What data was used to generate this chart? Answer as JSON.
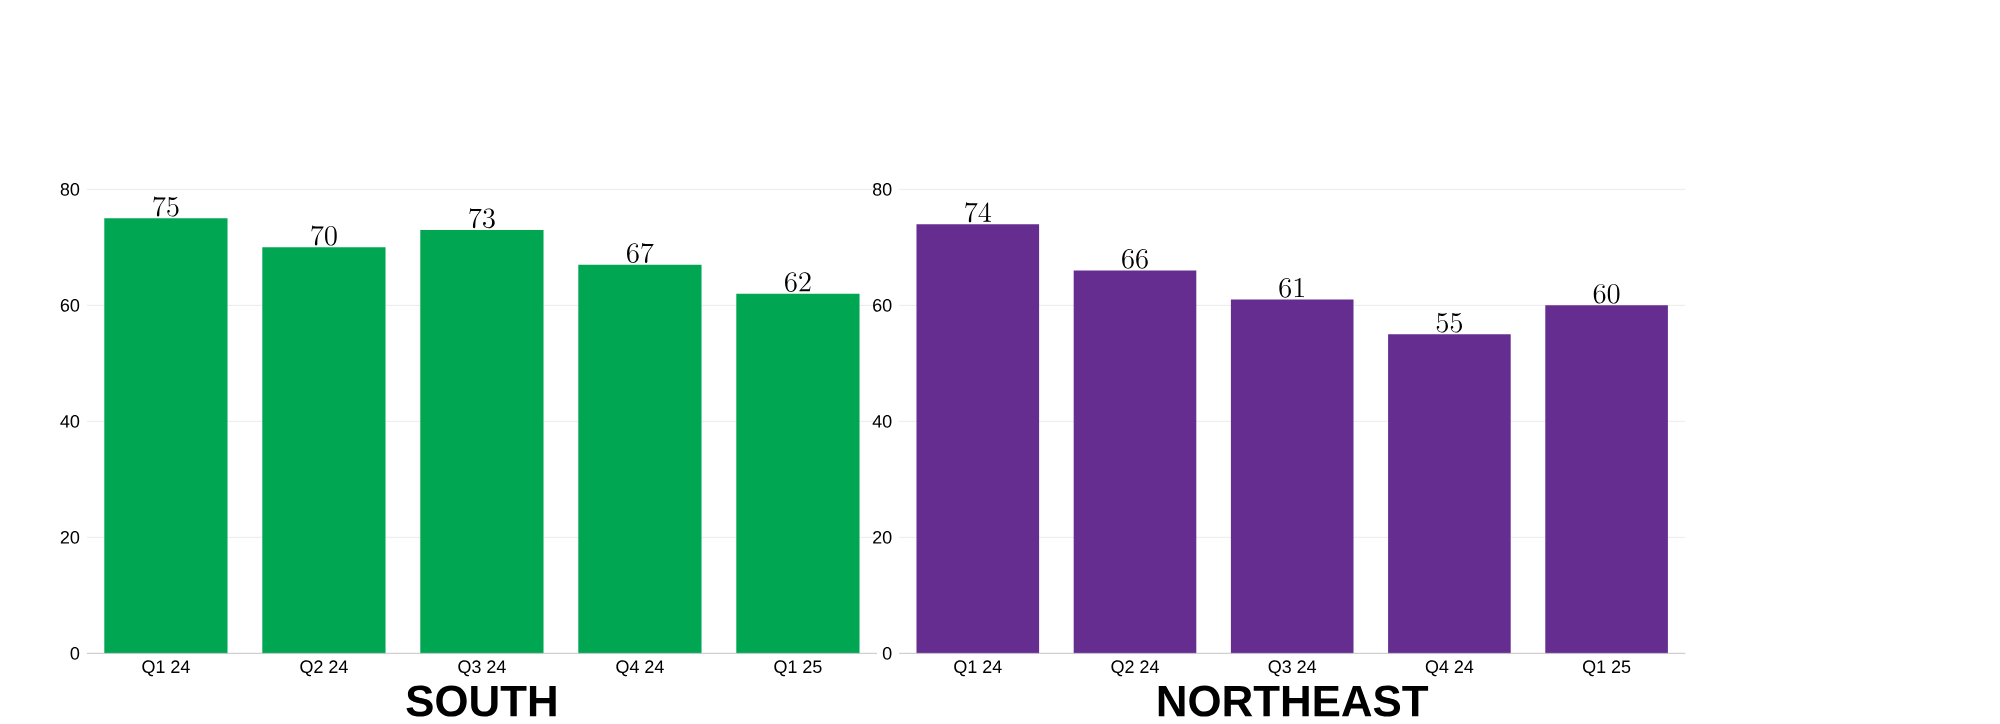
{
  "chart_data": [
    {
      "type": "bar",
      "title": "SOUTH",
      "categories": [
        "Q1 24",
        "Q2 24",
        "Q3 24",
        "Q4 24",
        "Q1 25"
      ],
      "values": [
        75,
        70,
        73,
        67,
        62
      ],
      "color": "#00a651",
      "ylim": [
        0,
        80
      ],
      "yticks": [
        0,
        20,
        40,
        60,
        80
      ],
      "grid": "y",
      "data_labels": true
    },
    {
      "type": "bar",
      "title": "NORTHEAST",
      "categories": [
        "Q1 24",
        "Q2 24",
        "Q3 24",
        "Q4 24",
        "Q1 25"
      ],
      "values": [
        74,
        66,
        61,
        55,
        60
      ],
      "color": "#662d91",
      "ylim": [
        0,
        80
      ],
      "yticks": [
        0,
        20,
        40,
        60,
        80
      ],
      "grid": "y",
      "data_labels": true
    }
  ]
}
